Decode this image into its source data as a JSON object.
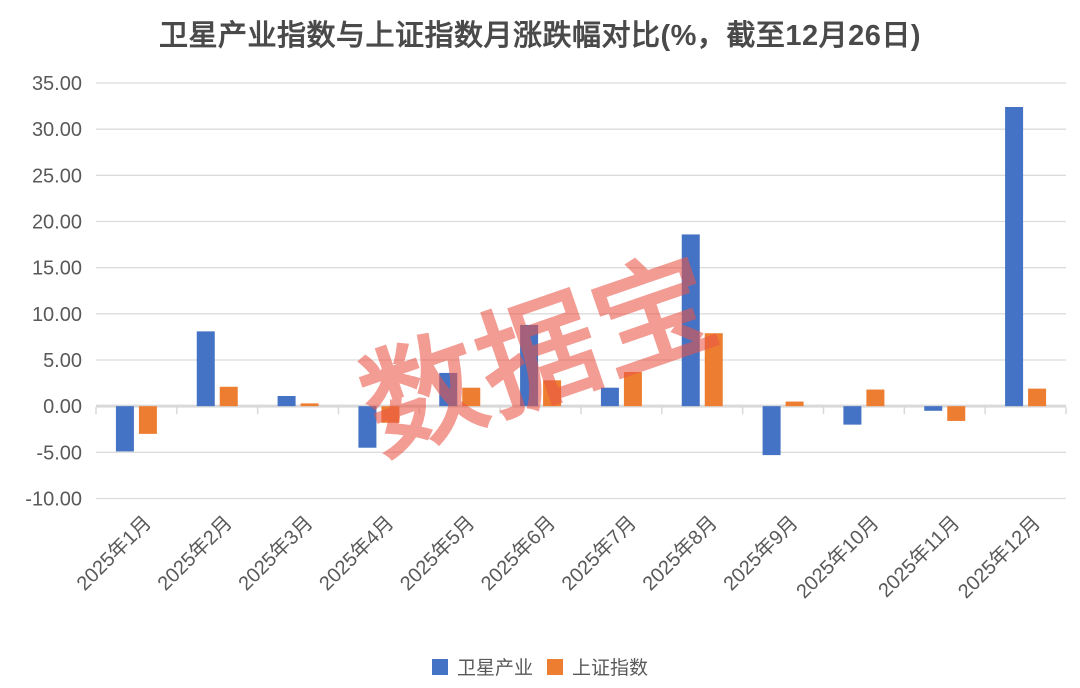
{
  "title": "卫星产业指数与上证指数月涨跌幅对比(%，截至12月26日)",
  "watermark": "数据宝",
  "chart_data": {
    "type": "bar",
    "title": "卫星产业指数与上证指数月涨跌幅对比(%，截至12月26日)",
    "categories": [
      "2025年1月",
      "2025年2月",
      "2025年3月",
      "2025年4月",
      "2025年5月",
      "2025年6月",
      "2025年7月",
      "2025年8月",
      "2025年9月",
      "2025年10月",
      "2025年11月",
      "2025年12月"
    ],
    "series": [
      {
        "name": "卫星产业",
        "color": "#4472C4",
        "values": [
          -4.9,
          8.1,
          1.1,
          -4.5,
          3.6,
          8.8,
          2.0,
          18.6,
          -5.3,
          -2.0,
          -0.5,
          32.4
        ]
      },
      {
        "name": "上证指数",
        "color": "#ED7D31",
        "values": [
          -3.0,
          2.1,
          0.3,
          -1.8,
          2.0,
          2.8,
          3.7,
          7.9,
          0.5,
          1.8,
          -1.6,
          1.9
        ]
      }
    ],
    "xlabel": "",
    "ylabel": "",
    "ylim": [
      -10,
      35
    ],
    "ytick_step": 5,
    "ytick_labels": [
      "35.00",
      "30.00",
      "25.00",
      "20.00",
      "15.00",
      "10.00",
      "5.00",
      "0.00",
      "-5.00",
      "-10.00"
    ],
    "grid": true,
    "legend_position": "bottom",
    "colors": {
      "grid_line": "#DCDCDC",
      "zero_axis": "#D9D9D9",
      "tick": "#D9D9D9",
      "axis_label": "#595959",
      "title_text": "#4A4A4A",
      "watermark": "#EB5546"
    }
  }
}
